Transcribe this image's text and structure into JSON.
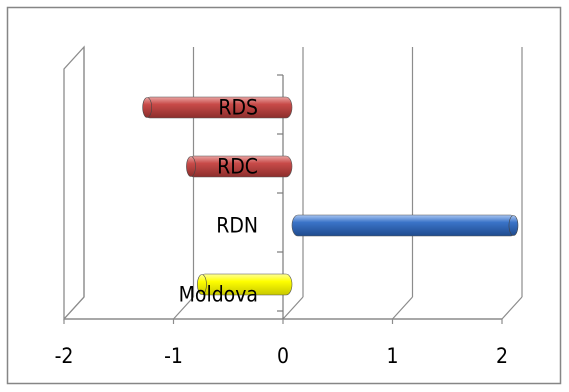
{
  "chart_data": {
    "type": "bar",
    "orientation": "horizontal",
    "style": "3d-cylinder",
    "categories": [
      "Moldova",
      "RDN",
      "RDC",
      "RDS"
    ],
    "values": [
      -0.85,
      2.05,
      -0.95,
      -1.35
    ],
    "bar_colors": [
      "#ffff00",
      "#3a73c8",
      "#c84a48",
      "#c84a48"
    ],
    "xlim": [
      -2,
      2
    ],
    "xticks": [
      -2,
      -1,
      0,
      1,
      2
    ],
    "xtick_labels": [
      "-2",
      "-1",
      "0",
      "1",
      "2"
    ],
    "grid": true,
    "legend": "none",
    "title": "",
    "xlabel": "",
    "ylabel": ""
  }
}
